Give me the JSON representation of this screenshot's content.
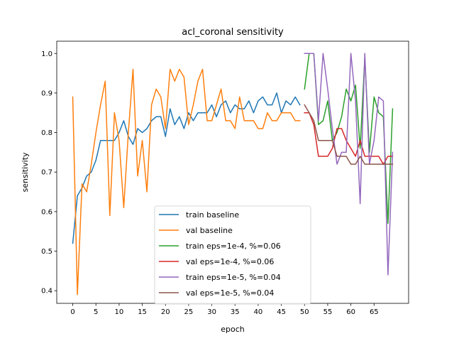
{
  "chart_data": {
    "type": "line",
    "title": "acl_coronal sensitivity",
    "xlabel": "epoch",
    "ylabel": "sensitivity",
    "xlim": [
      -3.45,
      72.45
    ],
    "ylim": [
      0.368,
      1.031
    ],
    "xticks": [
      0,
      5,
      10,
      15,
      20,
      25,
      30,
      35,
      40,
      45,
      50,
      55,
      60,
      65
    ],
    "yticks": [
      0.4,
      0.5,
      0.6,
      0.7,
      0.8,
      0.9,
      1.0
    ],
    "ytick_labels": [
      "0.4",
      "0.5",
      "0.6",
      "0.7",
      "0.8",
      "0.9",
      "1.0"
    ],
    "grid": false,
    "legend_position": "lower center",
    "series": [
      {
        "name": "train baseline",
        "color": "#1f77b4",
        "x_start": 0,
        "values": [
          0.52,
          0.64,
          0.66,
          0.69,
          0.7,
          0.73,
          0.78,
          0.78,
          0.78,
          0.78,
          0.8,
          0.83,
          0.79,
          0.77,
          0.81,
          0.8,
          0.81,
          0.83,
          0.84,
          0.84,
          0.79,
          0.86,
          0.82,
          0.84,
          0.81,
          0.85,
          0.83,
          0.85,
          0.85,
          0.85,
          0.87,
          0.84,
          0.87,
          0.88,
          0.85,
          0.87,
          0.86,
          0.86,
          0.88,
          0.85,
          0.88,
          0.89,
          0.87,
          0.87,
          0.9,
          0.85,
          0.88,
          0.87,
          0.89,
          0.87
        ]
      },
      {
        "name": "val baseline",
        "color": "#ff7f0e",
        "x_start": 0,
        "values": [
          0.89,
          0.39,
          0.67,
          0.65,
          0.72,
          0.8,
          0.87,
          0.93,
          0.59,
          0.85,
          0.78,
          0.61,
          0.8,
          0.96,
          0.69,
          0.78,
          0.65,
          0.87,
          0.91,
          0.89,
          0.81,
          0.96,
          0.93,
          0.96,
          0.94,
          0.82,
          0.87,
          0.93,
          0.96,
          0.83,
          0.83,
          0.87,
          0.91,
          0.83,
          0.83,
          0.81,
          0.89,
          0.83,
          0.83,
          0.83,
          0.81,
          0.81,
          0.85,
          0.83,
          0.83,
          0.85,
          0.85,
          0.85,
          0.83,
          0.83
        ]
      },
      {
        "name": "train eps=1e-4, %=0.06",
        "color": "#2ca02c",
        "x_start": 50,
        "values": [
          0.91,
          1.0,
          1.0,
          0.82,
          0.83,
          0.88,
          0.78,
          0.8,
          0.84,
          0.91,
          0.88,
          0.92,
          0.76,
          0.99,
          0.75,
          0.89,
          0.85,
          0.84,
          0.57,
          0.86
        ]
      },
      {
        "name": "val eps=1e-4, %=0.06",
        "color": "#d62728",
        "x_start": 50,
        "values": [
          0.85,
          0.85,
          0.82,
          0.74,
          0.74,
          0.74,
          0.76,
          0.81,
          0.81,
          0.78,
          0.76,
          0.74,
          0.78,
          0.74,
          0.74,
          0.74,
          0.74,
          0.72,
          0.74,
          0.74
        ]
      },
      {
        "name": "train eps=1e-5, %=0.04",
        "color": "#9467bd",
        "x_start": 50,
        "values": [
          1.0,
          1.0,
          1.0,
          0.83,
          1.0,
          0.91,
          0.81,
          0.72,
          0.75,
          0.75,
          1.0,
          0.88,
          0.62,
          1.0,
          0.72,
          0.78,
          0.89,
          0.88,
          0.44,
          0.75
        ]
      },
      {
        "name": "val eps=1e-5, %=0.04",
        "color": "#8c564b",
        "x_start": 50,
        "values": [
          0.87,
          0.85,
          0.83,
          0.78,
          0.78,
          0.78,
          0.78,
          0.74,
          0.74,
          0.74,
          0.72,
          0.72,
          0.74,
          0.72,
          0.72,
          0.72,
          0.72,
          0.72,
          0.72,
          0.72
        ]
      }
    ]
  }
}
